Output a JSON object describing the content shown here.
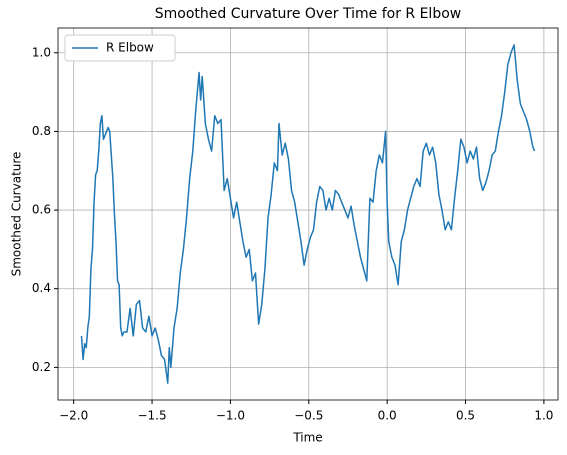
{
  "chart_data": {
    "type": "line",
    "title": "Smoothed Curvature Over Time for R Elbow",
    "xlabel": "Time",
    "ylabel": "Smoothed Curvature",
    "xlim": [
      -2.1,
      1.09
    ],
    "ylim": [
      0.117,
      1.063
    ],
    "xticks": [
      {
        "value": -2,
        "label": "−2.0"
      },
      {
        "value": -1.5,
        "label": "−1.5"
      },
      {
        "value": -1,
        "label": "−1.0"
      },
      {
        "value": -0.5,
        "label": "−0.5"
      },
      {
        "value": 0,
        "label": "0.0"
      },
      0.5,
      {
        "value": 1,
        "label": "1.0"
      }
    ],
    "yticks": [
      0.2,
      0.4,
      0.6,
      0.8,
      {
        "value": 1,
        "label": "1.0"
      }
    ],
    "grid": true,
    "legend": "upper left",
    "x": [
      -1.95,
      -1.94,
      -1.93,
      -1.92,
      -1.91,
      -1.9,
      -1.89,
      -1.88,
      -1.87,
      -1.86,
      -1.85,
      -1.84,
      -1.83,
      -1.82,
      -1.81,
      -1.8,
      -1.79,
      -1.78,
      -1.77,
      -1.76,
      -1.75,
      -1.74,
      -1.73,
      -1.72,
      -1.71,
      -1.7,
      -1.69,
      -1.68,
      -1.66,
      -1.64,
      -1.62,
      -1.6,
      -1.58,
      -1.56,
      -1.54,
      -1.52,
      -1.5,
      -1.48,
      -1.46,
      -1.44,
      -1.42,
      -1.4,
      -1.39,
      -1.38,
      -1.36,
      -1.34,
      -1.32,
      -1.3,
      -1.28,
      -1.26,
      -1.24,
      -1.22,
      -1.2,
      -1.19,
      -1.18,
      -1.16,
      -1.14,
      -1.12,
      -1.1,
      -1.08,
      -1.06,
      -1.04,
      -1.02,
      -1.0,
      -0.98,
      -0.96,
      -0.94,
      -0.92,
      -0.9,
      -0.88,
      -0.86,
      -0.84,
      -0.82,
      -0.8,
      -0.78,
      -0.76,
      -0.74,
      -0.72,
      -0.7,
      -0.69,
      -0.67,
      -0.65,
      -0.63,
      -0.61,
      -0.59,
      -0.57,
      -0.55,
      -0.53,
      -0.51,
      -0.49,
      -0.47,
      -0.45,
      -0.43,
      -0.41,
      -0.39,
      -0.37,
      -0.35,
      -0.33,
      -0.31,
      -0.29,
      -0.27,
      -0.25,
      -0.23,
      -0.21,
      -0.19,
      -0.17,
      -0.15,
      -0.13,
      -0.11,
      -0.09,
      -0.07,
      -0.05,
      -0.03,
      -0.01,
      0.0,
      0.01,
      0.03,
      0.05,
      0.07,
      0.09,
      0.11,
      0.13,
      0.15,
      0.17,
      0.19,
      0.21,
      0.23,
      0.25,
      0.27,
      0.29,
      0.31,
      0.33,
      0.35,
      0.37,
      0.39,
      0.41,
      0.43,
      0.45,
      0.47,
      0.49,
      0.51,
      0.53,
      0.55,
      0.57,
      0.59,
      0.61,
      0.63,
      0.65,
      0.67,
      0.69,
      0.71,
      0.73,
      0.75,
      0.77,
      0.79,
      0.81,
      0.83,
      0.85,
      0.87,
      0.89,
      0.91,
      0.93,
      0.94
    ],
    "series": [
      {
        "name": "R Elbow",
        "color": "#1f77b4",
        "values": [
          0.28,
          0.22,
          0.26,
          0.25,
          0.3,
          0.33,
          0.45,
          0.5,
          0.62,
          0.69,
          0.7,
          0.75,
          0.82,
          0.84,
          0.78,
          0.79,
          0.8,
          0.81,
          0.8,
          0.74,
          0.68,
          0.59,
          0.52,
          0.42,
          0.41,
          0.3,
          0.28,
          0.29,
          0.29,
          0.35,
          0.28,
          0.36,
          0.37,
          0.3,
          0.29,
          0.33,
          0.28,
          0.3,
          0.27,
          0.23,
          0.22,
          0.16,
          0.25,
          0.2,
          0.3,
          0.35,
          0.44,
          0.5,
          0.58,
          0.68,
          0.75,
          0.86,
          0.95,
          0.88,
          0.94,
          0.82,
          0.78,
          0.75,
          0.84,
          0.82,
          0.83,
          0.65,
          0.68,
          0.63,
          0.58,
          0.62,
          0.57,
          0.52,
          0.48,
          0.5,
          0.42,
          0.44,
          0.31,
          0.36,
          0.45,
          0.58,
          0.64,
          0.72,
          0.7,
          0.82,
          0.74,
          0.77,
          0.73,
          0.65,
          0.62,
          0.57,
          0.52,
          0.46,
          0.5,
          0.53,
          0.55,
          0.62,
          0.66,
          0.65,
          0.6,
          0.63,
          0.6,
          0.65,
          0.64,
          0.62,
          0.6,
          0.58,
          0.61,
          0.56,
          0.52,
          0.48,
          0.45,
          0.42,
          0.63,
          0.62,
          0.7,
          0.74,
          0.72,
          0.8,
          0.62,
          0.52,
          0.48,
          0.46,
          0.41,
          0.52,
          0.55,
          0.6,
          0.63,
          0.66,
          0.68,
          0.66,
          0.75,
          0.77,
          0.74,
          0.76,
          0.72,
          0.64,
          0.6,
          0.55,
          0.57,
          0.55,
          0.63,
          0.7,
          0.78,
          0.76,
          0.72,
          0.75,
          0.73,
          0.76,
          0.68,
          0.65,
          0.67,
          0.7,
          0.74,
          0.75,
          0.8,
          0.84,
          0.9,
          0.97,
          1.0,
          1.02,
          0.93,
          0.87,
          0.85,
          0.83,
          0.8,
          0.76,
          0.75
        ]
      }
    ]
  }
}
